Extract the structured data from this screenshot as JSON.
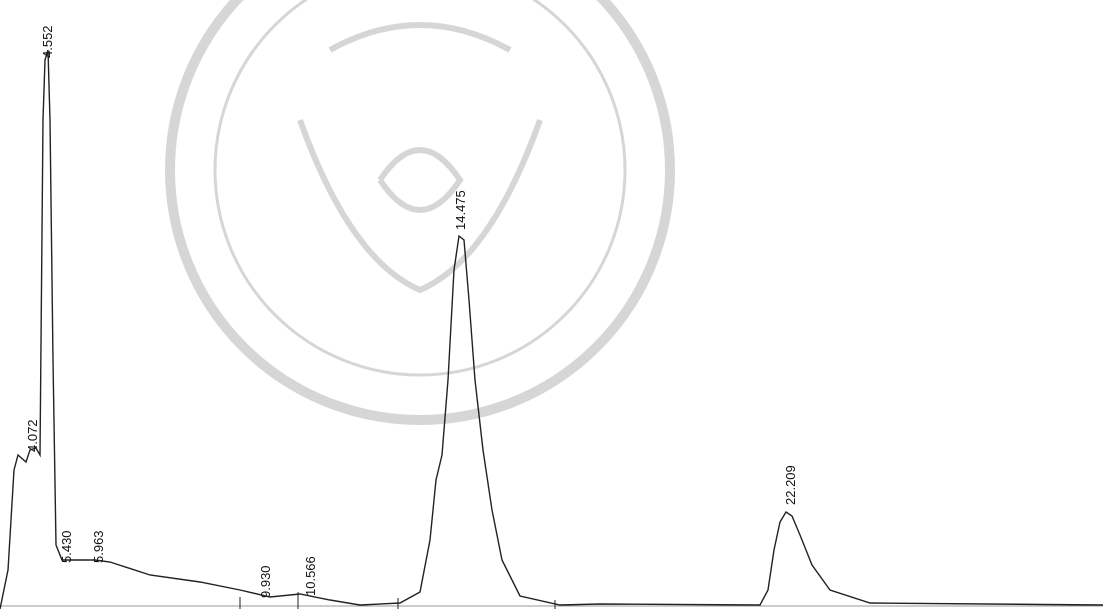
{
  "chart_data": {
    "type": "chromatogram",
    "annotations": [
      "4.552",
      "4.072",
      "5.430",
      "5.963",
      "9.930",
      "10.566",
      "14.475",
      "22.209"
    ]
  }
}
